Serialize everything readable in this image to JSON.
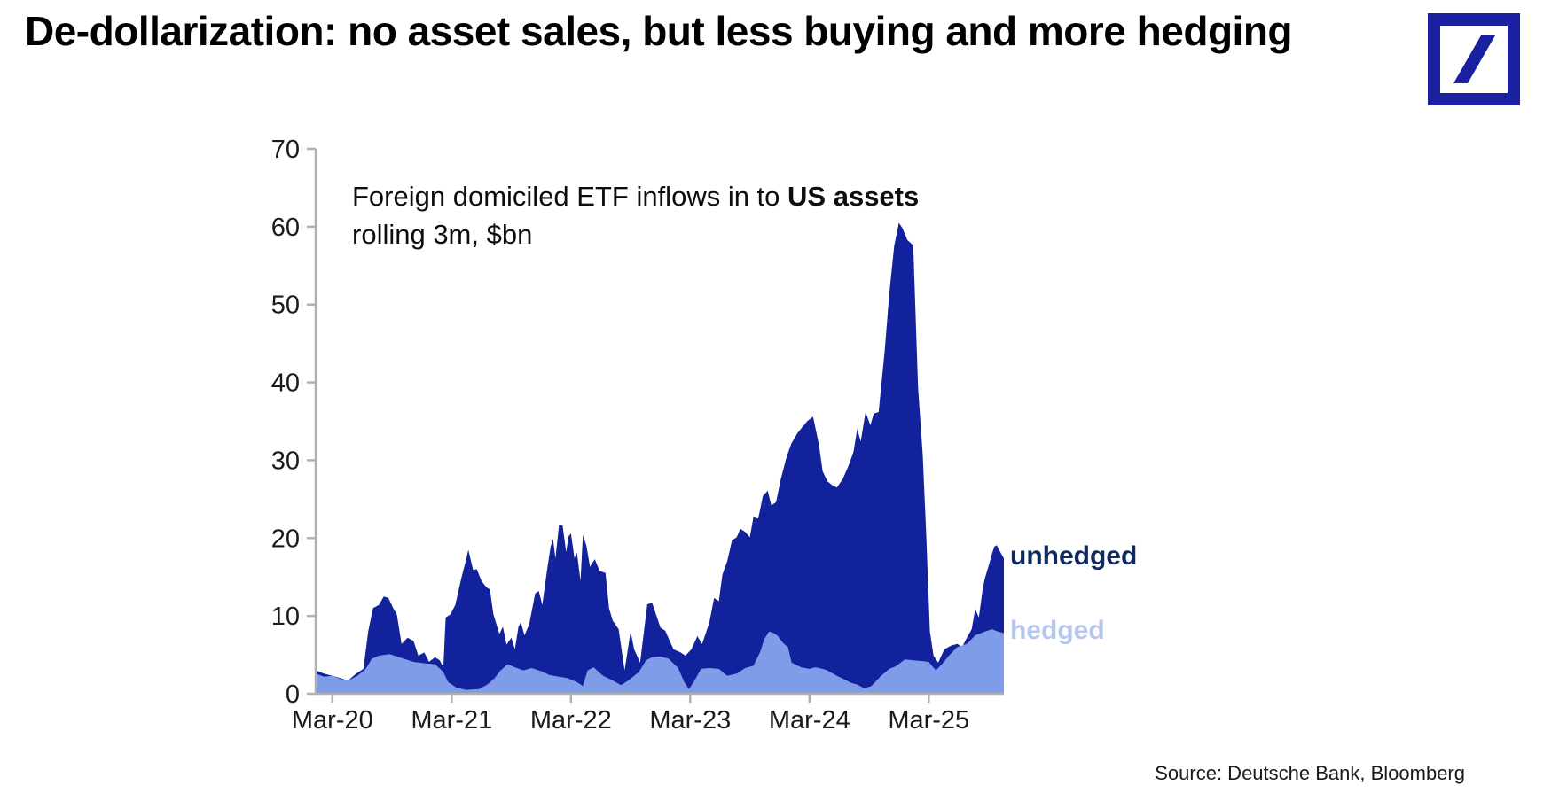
{
  "header": {
    "title": "De-dollarization: no asset sales, but less buying and more hedging"
  },
  "logo": {
    "name": "deutsche-bank-logo",
    "color": "#1A20A0"
  },
  "annotation": {
    "line1_regular": "Foreign domiciled ETF inflows in to ",
    "line1_bold": "US assets",
    "line2": "rolling 3m, $bn"
  },
  "series_labels": {
    "unhedged": "unhedged",
    "hedged": "hedged"
  },
  "source": {
    "text": "Source: Deutsche Bank, Bloomberg"
  },
  "colors": {
    "axis": "#B3B0AB",
    "tick_text": "#1a1a1a",
    "background": "#FFFFFF"
  },
  "chart_data": {
    "type": "area",
    "title": "Foreign domiciled ETF inflows in to US assets, rolling 3m, $bn",
    "xlabel": "",
    "ylabel": "$bn",
    "grid": false,
    "legend_position": "inline-right",
    "x_range": [
      2020.03,
      2025.8
    ],
    "y_range": [
      0,
      70
    ],
    "y_ticks": [
      0,
      10,
      20,
      30,
      40,
      50,
      60,
      70
    ],
    "x_ticks": [
      {
        "t": 2020.17,
        "label": "Mar-20"
      },
      {
        "t": 2021.17,
        "label": "Mar-21"
      },
      {
        "t": 2022.17,
        "label": "Mar-22"
      },
      {
        "t": 2023.17,
        "label": "Mar-23"
      },
      {
        "t": 2024.17,
        "label": "Mar-24"
      },
      {
        "t": 2025.17,
        "label": "Mar-25"
      }
    ],
    "series": [
      {
        "name": "unhedged",
        "color": "#12219C",
        "label_color": "#0E2A5E",
        "points": [
          [
            2020.03,
            3.0
          ],
          [
            2020.1,
            2.6
          ],
          [
            2020.17,
            2.3
          ],
          [
            2020.24,
            2.0
          ],
          [
            2020.3,
            1.7
          ],
          [
            2020.37,
            2.6
          ],
          [
            2020.43,
            3.2
          ],
          [
            2020.47,
            8.0
          ],
          [
            2020.51,
            11.0
          ],
          [
            2020.56,
            11.4
          ],
          [
            2020.6,
            12.5
          ],
          [
            2020.64,
            12.3
          ],
          [
            2020.68,
            11.0
          ],
          [
            2020.71,
            10.2
          ],
          [
            2020.75,
            6.4
          ],
          [
            2020.8,
            7.2
          ],
          [
            2020.85,
            6.8
          ],
          [
            2020.89,
            4.9
          ],
          [
            2020.94,
            5.3
          ],
          [
            2020.98,
            4.1
          ],
          [
            2021.03,
            4.7
          ],
          [
            2021.07,
            4.3
          ],
          [
            2021.1,
            3.4
          ],
          [
            2021.12,
            9.8
          ],
          [
            2021.16,
            10.2
          ],
          [
            2021.2,
            11.4
          ],
          [
            2021.25,
            14.8
          ],
          [
            2021.29,
            17.2
          ],
          [
            2021.31,
            18.5
          ],
          [
            2021.35,
            15.9
          ],
          [
            2021.38,
            16.0
          ],
          [
            2021.42,
            14.5
          ],
          [
            2021.46,
            13.7
          ],
          [
            2021.49,
            13.4
          ],
          [
            2021.52,
            10.2
          ],
          [
            2021.57,
            7.7
          ],
          [
            2021.6,
            8.6
          ],
          [
            2021.63,
            6.3
          ],
          [
            2021.67,
            7.2
          ],
          [
            2021.7,
            5.7
          ],
          [
            2021.73,
            8.6
          ],
          [
            2021.75,
            9.2
          ],
          [
            2021.78,
            7.5
          ],
          [
            2021.82,
            8.9
          ],
          [
            2021.87,
            12.9
          ],
          [
            2021.9,
            13.2
          ],
          [
            2021.93,
            11.4
          ],
          [
            2021.97,
            15.9
          ],
          [
            2022.0,
            18.9
          ],
          [
            2022.02,
            19.9
          ],
          [
            2022.04,
            17.4
          ],
          [
            2022.07,
            21.7
          ],
          [
            2022.1,
            21.6
          ],
          [
            2022.13,
            18.2
          ],
          [
            2022.15,
            20.2
          ],
          [
            2022.17,
            20.6
          ],
          [
            2022.2,
            17.4
          ],
          [
            2022.22,
            18.2
          ],
          [
            2022.25,
            14.5
          ],
          [
            2022.27,
            20.4
          ],
          [
            2022.3,
            19.0
          ],
          [
            2022.33,
            16.3
          ],
          [
            2022.37,
            17.3
          ],
          [
            2022.41,
            15.8
          ],
          [
            2022.46,
            15.5
          ],
          [
            2022.49,
            11.0
          ],
          [
            2022.52,
            9.4
          ],
          [
            2022.57,
            8.3
          ],
          [
            2022.62,
            3.0
          ],
          [
            2022.67,
            8.0
          ],
          [
            2022.7,
            5.7
          ],
          [
            2022.75,
            4.0
          ],
          [
            2022.81,
            11.5
          ],
          [
            2022.85,
            11.7
          ],
          [
            2022.92,
            8.5
          ],
          [
            2022.96,
            8.1
          ],
          [
            2023.03,
            5.7
          ],
          [
            2023.09,
            5.3
          ],
          [
            2023.13,
            4.9
          ],
          [
            2023.18,
            5.7
          ],
          [
            2023.23,
            7.4
          ],
          [
            2023.27,
            6.4
          ],
          [
            2023.33,
            9.1
          ],
          [
            2023.37,
            12.3
          ],
          [
            2023.41,
            11.9
          ],
          [
            2023.44,
            15.3
          ],
          [
            2023.48,
            17.0
          ],
          [
            2023.52,
            19.7
          ],
          [
            2023.56,
            20.1
          ],
          [
            2023.59,
            21.2
          ],
          [
            2023.63,
            20.8
          ],
          [
            2023.67,
            20.1
          ],
          [
            2023.7,
            22.7
          ],
          [
            2023.74,
            22.5
          ],
          [
            2023.78,
            25.4
          ],
          [
            2023.82,
            26.1
          ],
          [
            2023.85,
            24.2
          ],
          [
            2023.89,
            24.6
          ],
          [
            2023.93,
            27.6
          ],
          [
            2023.98,
            30.5
          ],
          [
            2024.02,
            32.2
          ],
          [
            2024.07,
            33.5
          ],
          [
            2024.15,
            35.0
          ],
          [
            2024.2,
            35.6
          ],
          [
            2024.25,
            32.0
          ],
          [
            2024.28,
            28.6
          ],
          [
            2024.32,
            27.3
          ],
          [
            2024.36,
            26.8
          ],
          [
            2024.4,
            26.5
          ],
          [
            2024.45,
            27.6
          ],
          [
            2024.5,
            29.4
          ],
          [
            2024.54,
            31.1
          ],
          [
            2024.57,
            34.0
          ],
          [
            2024.6,
            32.4
          ],
          [
            2024.64,
            36.2
          ],
          [
            2024.68,
            34.5
          ],
          [
            2024.71,
            36.0
          ],
          [
            2024.75,
            36.2
          ],
          [
            2024.8,
            43.9
          ],
          [
            2024.84,
            51.5
          ],
          [
            2024.88,
            57.5
          ],
          [
            2024.92,
            60.5
          ],
          [
            2024.95,
            59.8
          ],
          [
            2024.99,
            58.3
          ],
          [
            2025.04,
            57.6
          ],
          [
            2025.08,
            39.4
          ],
          [
            2025.12,
            30.7
          ],
          [
            2025.15,
            20.0
          ],
          [
            2025.18,
            8.0
          ],
          [
            2025.21,
            4.9
          ],
          [
            2025.25,
            4.0
          ],
          [
            2025.3,
            5.7
          ],
          [
            2025.36,
            6.2
          ],
          [
            2025.41,
            6.4
          ],
          [
            2025.45,
            6.0
          ],
          [
            2025.49,
            7.2
          ],
          [
            2025.53,
            8.3
          ],
          [
            2025.56,
            10.9
          ],
          [
            2025.59,
            9.8
          ],
          [
            2025.62,
            13.2
          ],
          [
            2025.64,
            14.8
          ],
          [
            2025.67,
            16.3
          ],
          [
            2025.7,
            18.0
          ],
          [
            2025.72,
            18.9
          ],
          [
            2025.74,
            19.1
          ],
          [
            2025.77,
            18.2
          ],
          [
            2025.8,
            17.4
          ]
        ]
      },
      {
        "name": "hedged",
        "color": "#7F9CE8",
        "label_color": "#B5C6EE",
        "points": [
          [
            2020.03,
            2.6
          ],
          [
            2020.1,
            2.2
          ],
          [
            2020.17,
            2.3
          ],
          [
            2020.24,
            1.9
          ],
          [
            2020.3,
            1.7
          ],
          [
            2020.38,
            2.3
          ],
          [
            2020.45,
            3.2
          ],
          [
            2020.5,
            4.5
          ],
          [
            2020.56,
            4.9
          ],
          [
            2020.65,
            5.1
          ],
          [
            2020.73,
            4.7
          ],
          [
            2020.85,
            4.1
          ],
          [
            2020.95,
            3.9
          ],
          [
            2021.03,
            3.8
          ],
          [
            2021.1,
            2.8
          ],
          [
            2021.14,
            1.5
          ],
          [
            2021.21,
            0.8
          ],
          [
            2021.29,
            0.5
          ],
          [
            2021.4,
            0.6
          ],
          [
            2021.47,
            1.2
          ],
          [
            2021.53,
            2.0
          ],
          [
            2021.58,
            3.0
          ],
          [
            2021.64,
            3.8
          ],
          [
            2021.7,
            3.4
          ],
          [
            2021.77,
            3.0
          ],
          [
            2021.84,
            3.3
          ],
          [
            2021.92,
            2.9
          ],
          [
            2021.99,
            2.4
          ],
          [
            2022.07,
            2.2
          ],
          [
            2022.14,
            2.0
          ],
          [
            2022.22,
            1.5
          ],
          [
            2022.27,
            1.0
          ],
          [
            2022.31,
            3.0
          ],
          [
            2022.36,
            3.4
          ],
          [
            2022.44,
            2.3
          ],
          [
            2022.51,
            1.8
          ],
          [
            2022.59,
            1.1
          ],
          [
            2022.66,
            1.8
          ],
          [
            2022.74,
            2.8
          ],
          [
            2022.8,
            4.3
          ],
          [
            2022.85,
            4.7
          ],
          [
            2022.92,
            4.8
          ],
          [
            2022.99,
            4.5
          ],
          [
            2023.07,
            3.3
          ],
          [
            2023.12,
            1.5
          ],
          [
            2023.16,
            0.6
          ],
          [
            2023.21,
            1.8
          ],
          [
            2023.26,
            3.2
          ],
          [
            2023.33,
            3.3
          ],
          [
            2023.41,
            3.2
          ],
          [
            2023.48,
            2.3
          ],
          [
            2023.56,
            2.6
          ],
          [
            2023.63,
            3.3
          ],
          [
            2023.7,
            3.6
          ],
          [
            2023.76,
            5.5
          ],
          [
            2023.79,
            7.0
          ],
          [
            2023.83,
            8.0
          ],
          [
            2023.87,
            7.8
          ],
          [
            2023.9,
            7.5
          ],
          [
            2023.95,
            6.5
          ],
          [
            2023.99,
            6.0
          ],
          [
            2024.02,
            4.0
          ],
          [
            2024.1,
            3.4
          ],
          [
            2024.17,
            3.2
          ],
          [
            2024.22,
            3.4
          ],
          [
            2024.28,
            3.2
          ],
          [
            2024.32,
            3.0
          ],
          [
            2024.4,
            2.3
          ],
          [
            2024.47,
            1.8
          ],
          [
            2024.52,
            1.4
          ],
          [
            2024.57,
            1.2
          ],
          [
            2024.63,
            0.7
          ],
          [
            2024.69,
            1.0
          ],
          [
            2024.77,
            2.3
          ],
          [
            2024.84,
            3.2
          ],
          [
            2024.89,
            3.5
          ],
          [
            2024.97,
            4.4
          ],
          [
            2025.04,
            4.3
          ],
          [
            2025.12,
            4.2
          ],
          [
            2025.17,
            4.1
          ],
          [
            2025.23,
            3.0
          ],
          [
            2025.28,
            3.8
          ],
          [
            2025.34,
            4.9
          ],
          [
            2025.41,
            6.0
          ],
          [
            2025.49,
            6.4
          ],
          [
            2025.56,
            7.5
          ],
          [
            2025.64,
            8.0
          ],
          [
            2025.7,
            8.3
          ],
          [
            2025.75,
            8.0
          ],
          [
            2025.8,
            7.8
          ]
        ]
      }
    ]
  }
}
